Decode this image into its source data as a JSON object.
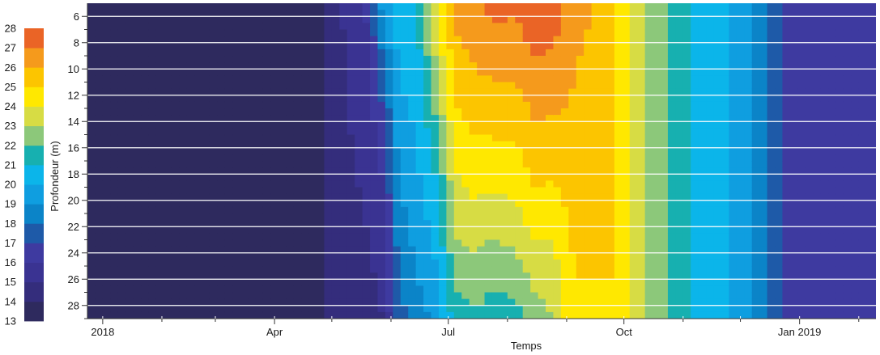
{
  "chart_data": {
    "type": "heatmap",
    "title": "",
    "xlabel": "Temps",
    "ylabel": "Profondeur (m)",
    "x_axis": {
      "type": "date",
      "range": [
        "2017-12-24",
        "2019-02-10"
      ],
      "tick_labels": [
        {
          "date": "2018-01-01",
          "label": "2018"
        },
        {
          "date": "2018-04-01",
          "label": "Apr"
        },
        {
          "date": "2018-07-01",
          "label": "Jul"
        },
        {
          "date": "2018-10-01",
          "label": "Oct"
        },
        {
          "date": "2019-01-01",
          "label": "Jan 2019"
        }
      ]
    },
    "y_axis": {
      "range": [
        5,
        29
      ],
      "inverted": true,
      "ticks": [
        6,
        8,
        10,
        12,
        14,
        16,
        18,
        20,
        22,
        24,
        26,
        28
      ]
    },
    "colorbar": {
      "position": "left",
      "levels": [
        13,
        14,
        15,
        16,
        17,
        18,
        19,
        20,
        21,
        22,
        23,
        24,
        25,
        26,
        27,
        28
      ],
      "colors": [
        "#2e2a5e",
        "#342d7c",
        "#3a3392",
        "#3e3aa0",
        "#1e5aa8",
        "#0b84c8",
        "#0f9ee0",
        "#0bb5ea",
        "#17b0b0",
        "#8cc87a",
        "#d7dc44",
        "#ffe800",
        "#fcc500",
        "#f59a1c",
        "#ea6426"
      ]
    },
    "depth_levels": [
      5,
      8,
      11,
      14,
      17,
      20,
      23,
      26,
      29
    ],
    "temperature_profile": [
      {
        "date": "2017-12-24",
        "t": [
          13.5,
          13.5,
          13.5,
          13.5,
          13.5,
          13.5,
          13.5,
          13.5,
          13.5
        ]
      },
      {
        "date": "2018-04-25",
        "t": [
          13.5,
          13.5,
          13.5,
          13.5,
          13.5,
          13.5,
          13.5,
          13.5,
          13.5
        ]
      },
      {
        "date": "2018-05-01",
        "t": [
          14.5,
          14.5,
          14.5,
          14.5,
          14.5,
          14.5,
          14.5,
          14.5,
          14.5
        ]
      },
      {
        "date": "2018-05-20",
        "t": [
          16.2,
          16.0,
          15.8,
          15.5,
          15.3,
          15.1,
          15.0,
          14.8,
          14.6
        ]
      },
      {
        "date": "2018-05-28",
        "t": [
          19.5,
          18.5,
          17.5,
          16.8,
          16.3,
          15.8,
          15.5,
          15.2,
          15.0
        ]
      },
      {
        "date": "2018-06-05",
        "t": [
          20.5,
          20.3,
          20.0,
          19.6,
          19.2,
          18.8,
          18.4,
          18.0,
          17.5
        ]
      },
      {
        "date": "2018-06-15",
        "t": [
          21.2,
          20.8,
          20.5,
          20.2,
          20.0,
          19.7,
          19.3,
          19.0,
          18.5
        ]
      },
      {
        "date": "2018-06-25",
        "t": [
          24.3,
          23.5,
          22.8,
          22.0,
          21.3,
          20.8,
          20.3,
          19.8,
          19.3
        ]
      },
      {
        "date": "2018-07-05",
        "t": [
          26.5,
          25.8,
          25.3,
          24.8,
          24.2,
          23.6,
          23.0,
          22.3,
          21.5
        ]
      },
      {
        "date": "2018-07-15",
        "t": [
          26.8,
          26.3,
          25.8,
          25.2,
          24.6,
          24.0,
          23.2,
          22.5,
          21.8
        ]
      },
      {
        "date": "2018-07-25",
        "t": [
          27.3,
          26.7,
          26.0,
          25.3,
          24.6,
          23.8,
          23.0,
          22.2,
          21.5
        ]
      },
      {
        "date": "2018-08-05",
        "t": [
          27.2,
          26.6,
          26.0,
          25.3,
          24.7,
          24.0,
          23.2,
          22.4,
          21.6
        ]
      },
      {
        "date": "2018-08-15",
        "t": [
          27.6,
          27.2,
          26.6,
          26.0,
          25.4,
          24.8,
          24.0,
          23.2,
          22.4
        ]
      },
      {
        "date": "2018-08-25",
        "t": [
          27.5,
          27.1,
          26.5,
          25.9,
          25.3,
          24.7,
          24.0,
          23.5,
          23.0
        ]
      },
      {
        "date": "2018-09-05",
        "t": [
          26.5,
          26.2,
          26.0,
          25.8,
          25.6,
          25.4,
          25.2,
          25.0,
          24.8
        ]
      },
      {
        "date": "2018-09-15",
        "t": [
          26.0,
          25.8,
          25.6,
          25.4,
          25.3,
          25.2,
          25.1,
          25.0,
          24.9
        ]
      },
      {
        "date": "2018-09-25",
        "t": [
          25.2,
          25.2,
          25.1,
          25.1,
          25.0,
          25.0,
          25.0,
          25.0,
          24.9
        ]
      },
      {
        "date": "2018-10-01",
        "t": [
          24.2,
          24.2,
          24.2,
          24.2,
          24.2,
          24.2,
          24.2,
          24.2,
          24.2
        ]
      },
      {
        "date": "2018-10-08",
        "t": [
          23.3,
          23.3,
          23.3,
          23.3,
          23.3,
          23.3,
          23.3,
          23.3,
          23.3
        ]
      },
      {
        "date": "2018-10-20",
        "t": [
          22.2,
          22.2,
          22.2,
          22.2,
          22.2,
          22.2,
          22.2,
          22.2,
          22.2
        ]
      },
      {
        "date": "2018-11-05",
        "t": [
          21.0,
          21.0,
          21.0,
          21.0,
          21.0,
          21.0,
          21.0,
          21.0,
          21.0
        ]
      },
      {
        "date": "2018-11-25",
        "t": [
          20.0,
          20.0,
          20.0,
          20.0,
          20.0,
          20.0,
          20.0,
          20.0,
          20.0
        ]
      },
      {
        "date": "2018-12-08",
        "t": [
          19.0,
          19.0,
          19.0,
          19.0,
          19.0,
          19.0,
          19.0,
          19.0,
          19.0
        ]
      },
      {
        "date": "2018-12-20",
        "t": [
          17.5,
          17.5,
          17.5,
          17.5,
          17.5,
          17.5,
          17.5,
          17.5,
          17.5
        ]
      },
      {
        "date": "2018-12-28",
        "t": [
          16.3,
          16.3,
          16.3,
          16.3,
          16.3,
          16.3,
          16.3,
          16.3,
          16.3
        ]
      },
      {
        "date": "2019-02-10",
        "t": [
          16.0,
          16.0,
          16.0,
          16.0,
          16.0,
          16.0,
          16.0,
          16.0,
          16.0
        ]
      }
    ]
  }
}
